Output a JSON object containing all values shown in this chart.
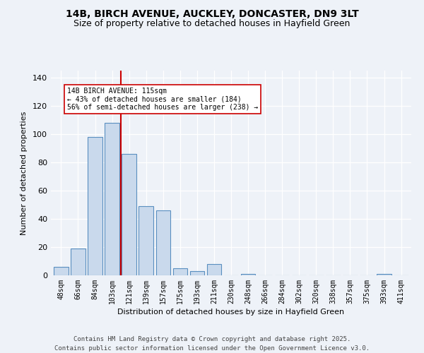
{
  "title1": "14B, BIRCH AVENUE, AUCKLEY, DONCASTER, DN9 3LT",
  "title2": "Size of property relative to detached houses in Hayfield Green",
  "xlabel": "Distribution of detached houses by size in Hayfield Green",
  "ylabel": "Number of detached properties",
  "bar_labels": [
    "48sqm",
    "66sqm",
    "84sqm",
    "103sqm",
    "121sqm",
    "139sqm",
    "157sqm",
    "175sqm",
    "193sqm",
    "211sqm",
    "230sqm",
    "248sqm",
    "266sqm",
    "284sqm",
    "302sqm",
    "320sqm",
    "338sqm",
    "357sqm",
    "375sqm",
    "393sqm",
    "411sqm"
  ],
  "bar_values": [
    6,
    19,
    98,
    108,
    86,
    49,
    46,
    5,
    3,
    8,
    0,
    1,
    0,
    0,
    0,
    0,
    0,
    0,
    0,
    1,
    0
  ],
  "bar_color": "#c9d9ec",
  "bar_edge_color": "#5a8fc0",
  "vline_x": 3.5,
  "vline_color": "#cc0000",
  "annotation_text": "14B BIRCH AVENUE: 115sqm\n← 43% of detached houses are smaller (184)\n56% of semi-detached houses are larger (238) →",
  "ylim": [
    0,
    145
  ],
  "yticks": [
    0,
    20,
    40,
    60,
    80,
    100,
    120,
    140
  ],
  "footer1": "Contains HM Land Registry data © Crown copyright and database right 2025.",
  "footer2": "Contains public sector information licensed under the Open Government Licence v3.0.",
  "bg_color": "#eef2f8",
  "plot_bg_color": "#eef2f8"
}
